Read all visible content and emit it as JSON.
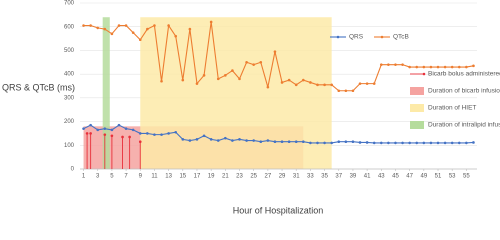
{
  "chart_data": {
    "type": "line",
    "y_label": "QRS & QTcB (ms)",
    "x_label": "Hour of Hospitalization",
    "x": [
      1,
      2,
      3,
      4,
      5,
      6,
      7,
      8,
      9,
      10,
      11,
      12,
      13,
      14,
      15,
      16,
      17,
      18,
      19,
      20,
      21,
      22,
      23,
      24,
      25,
      26,
      27,
      28,
      29,
      30,
      31,
      32,
      33,
      34,
      35,
      36,
      37,
      38,
      39,
      40,
      41,
      42,
      43,
      44,
      45,
      46,
      47,
      48,
      49,
      50,
      51,
      52,
      53,
      54,
      55,
      56
    ],
    "series": [
      {
        "name": "QRS",
        "color": "#4472c4",
        "values": [
          170,
          185,
          165,
          170,
          165,
          185,
          170,
          165,
          150,
          150,
          145,
          145,
          150,
          155,
          125,
          120,
          125,
          140,
          125,
          120,
          130,
          120,
          125,
          120,
          120,
          115,
          120,
          115,
          115,
          115,
          115,
          115,
          110,
          110,
          110,
          110,
          115,
          115,
          115,
          112,
          112,
          110,
          110,
          110,
          110,
          110,
          110,
          110,
          110,
          110,
          110,
          110,
          110,
          110,
          110,
          112
        ]
      },
      {
        "name": "QTcB",
        "color": "#ed7d31",
        "values": [
          605,
          605,
          595,
          590,
          570,
          605,
          605,
          575,
          545,
          590,
          605,
          370,
          605,
          560,
          375,
          590,
          360,
          395,
          620,
          380,
          395,
          415,
          380,
          450,
          440,
          450,
          345,
          495,
          365,
          375,
          355,
          375,
          365,
          355,
          355,
          355,
          330,
          330,
          330,
          360,
          360,
          360,
          440,
          440,
          440,
          440,
          430,
          430,
          430,
          430,
          430,
          430,
          430,
          430,
          430,
          435
        ]
      }
    ],
    "bolus": {
      "name": "Bicarb bolus administered",
      "color": "#e8303a",
      "x": [
        1.5,
        2,
        4,
        5,
        6.5,
        7.5,
        9
      ],
      "values": [
        150,
        150,
        145,
        140,
        135,
        135,
        115
      ]
    },
    "regions": [
      {
        "name": "Duration of bicarb infusion",
        "color": "#f5a3a0",
        "x": [
          1,
          32
        ],
        "y": [
          0,
          180
        ]
      },
      {
        "name": "Duration of HIET",
        "color": "#fdeaa8",
        "x": [
          9,
          36
        ],
        "y": [
          0,
          640
        ]
      },
      {
        "name": "Duration of intralipid infusion",
        "color": "#b5dc9c",
        "x": [
          3.7,
          4.7
        ],
        "y": [
          0,
          640
        ]
      }
    ],
    "xlim": [
      0.5,
      56.5
    ],
    "xticks": [
      1,
      3,
      5,
      7,
      9,
      11,
      13,
      15,
      17,
      19,
      21,
      23,
      25,
      27,
      29,
      31,
      33,
      35,
      37,
      39,
      41,
      43,
      45,
      47,
      49,
      51,
      53,
      55
    ],
    "ylim": [
      0,
      700
    ],
    "yticks": [
      0,
      100,
      200,
      300,
      400,
      500,
      600,
      700
    ],
    "grid": true
  }
}
